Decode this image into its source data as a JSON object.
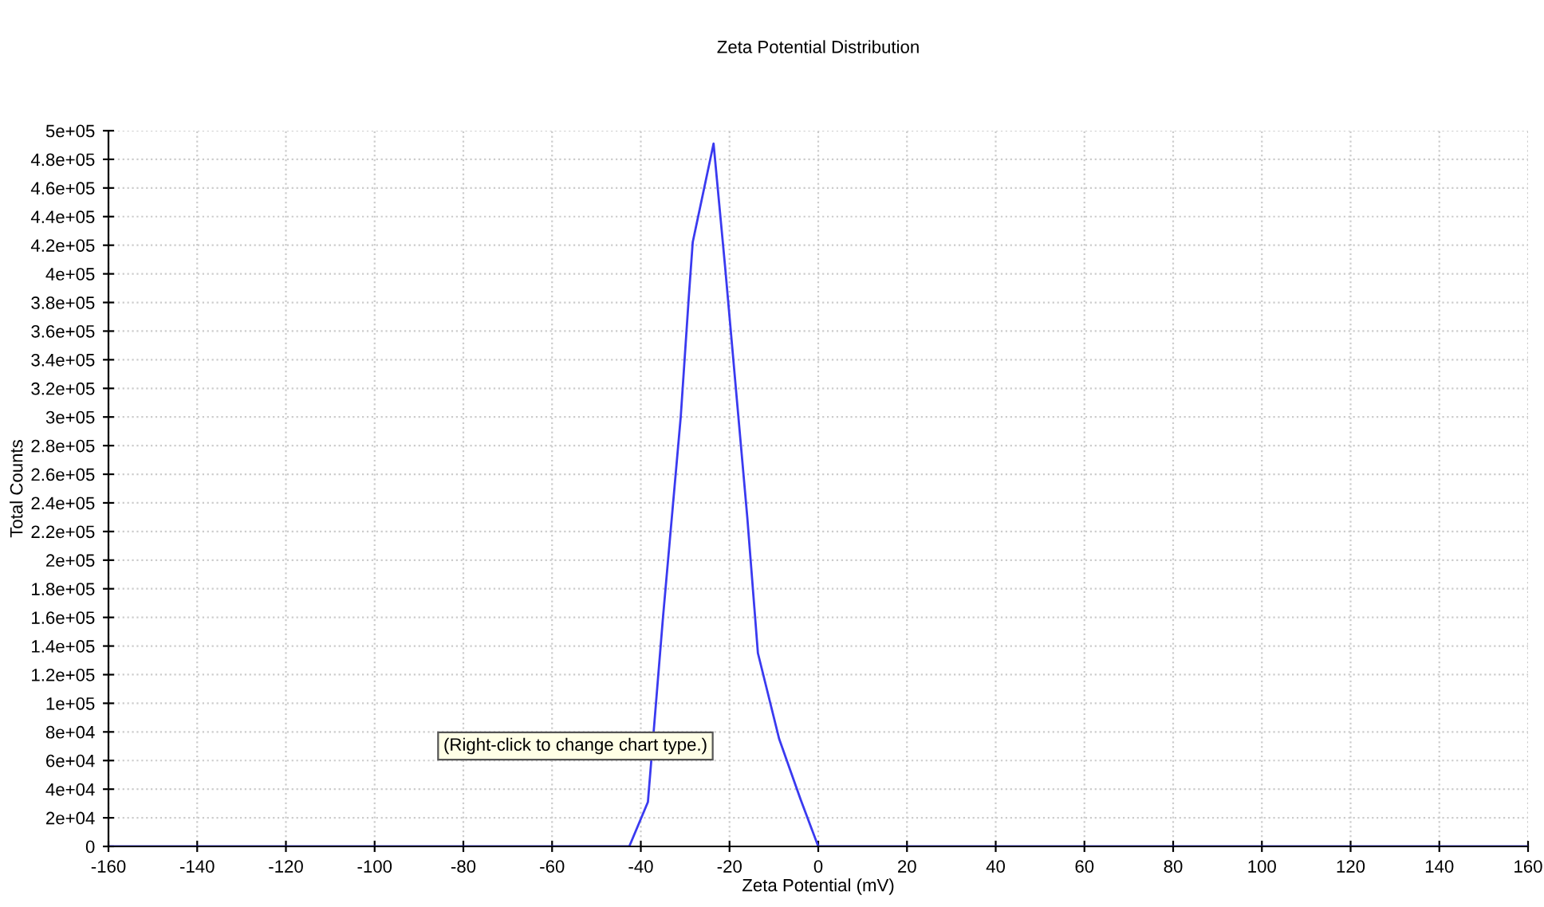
{
  "chart_data": {
    "type": "line",
    "title": "Zeta Potential Distribution",
    "xlabel": "Zeta Potential (mV)",
    "ylabel": "Total Counts",
    "series": [
      {
        "color": "#3a3af0",
        "x": [
          -160,
          -42.6,
          -38.4,
          -35,
          -31,
          -29.2,
          -28.3,
          -23.6,
          -21,
          -19,
          -16,
          -13.6,
          -8.8,
          -4,
          0,
          160
        ],
        "values": [
          0,
          0,
          31000,
          160000,
          300000,
          383000,
          422000,
          491000,
          405000,
          335000,
          230000,
          135000,
          75000,
          33000,
          0,
          0
        ]
      }
    ],
    "xlim": [
      -160,
      160
    ],
    "xticks": [
      -160,
      -140,
      -120,
      -100,
      -80,
      -60,
      -40,
      -20,
      0,
      20,
      40,
      60,
      80,
      100,
      120,
      140,
      160
    ],
    "ylim": [
      0,
      500000
    ],
    "yticks": [
      {
        "value": 0,
        "label": "0"
      },
      {
        "value": 20000,
        "label": "2e+04"
      },
      {
        "value": 40000,
        "label": "4e+04"
      },
      {
        "value": 60000,
        "label": "6e+04"
      },
      {
        "value": 80000,
        "label": "8e+04"
      },
      {
        "value": 100000,
        "label": "1e+05"
      },
      {
        "value": 120000,
        "label": "1.2e+05"
      },
      {
        "value": 140000,
        "label": "1.4e+05"
      },
      {
        "value": 160000,
        "label": "1.6e+05"
      },
      {
        "value": 180000,
        "label": "1.8e+05"
      },
      {
        "value": 200000,
        "label": "2e+05"
      },
      {
        "value": 220000,
        "label": "2.2e+05"
      },
      {
        "value": 240000,
        "label": "2.4e+05"
      },
      {
        "value": 260000,
        "label": "2.6e+05"
      },
      {
        "value": 280000,
        "label": "2.8e+05"
      },
      {
        "value": 300000,
        "label": "3e+05"
      },
      {
        "value": 320000,
        "label": "3.2e+05"
      },
      {
        "value": 340000,
        "label": "3.4e+05"
      },
      {
        "value": 360000,
        "label": "3.6e+05"
      },
      {
        "value": 380000,
        "label": "3.8e+05"
      },
      {
        "value": 400000,
        "label": "4e+05"
      },
      {
        "value": 420000,
        "label": "4.2e+05"
      },
      {
        "value": 440000,
        "label": "4.4e+05"
      },
      {
        "value": 460000,
        "label": "4.6e+05"
      },
      {
        "value": 480000,
        "label": "4.8e+05"
      },
      {
        "value": 500000,
        "label": "5e+05"
      }
    ],
    "grid": true,
    "marker": "none",
    "line_style": "solid",
    "annotations": [
      "(Right-click to change chart type.)"
    ]
  }
}
